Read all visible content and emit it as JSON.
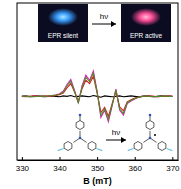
{
  "chart_data": {
    "type": "line",
    "xlabel": "B (mT)",
    "x": [
      330,
      331,
      332,
      333,
      334,
      335,
      336,
      337,
      338,
      339,
      340,
      341,
      342,
      343,
      344,
      345,
      346,
      347,
      348,
      349,
      350,
      351,
      352,
      353,
      354,
      355,
      356,
      357,
      358,
      359,
      360,
      361,
      362,
      363,
      364,
      365,
      366,
      367,
      368,
      369,
      370
    ],
    "series": [
      {
        "color": "#000000",
        "values": [
          0,
          0.01,
          -0.01,
          0,
          0.01,
          0,
          -0.01,
          0,
          0.01,
          0,
          -0.01,
          0.01,
          0,
          0.02,
          -0.01,
          0,
          0.01,
          0,
          -0.01,
          0.02,
          0,
          -0.02,
          0.01,
          0,
          -0.01,
          0,
          0.01,
          -0.01,
          0,
          0.01,
          0,
          -0.01,
          0,
          0.01,
          0,
          -0.01,
          0,
          0.01,
          0,
          0,
          0
        ]
      },
      {
        "color": "#e020c0",
        "values": [
          0,
          0.01,
          -0.01,
          0,
          0.01,
          0,
          0,
          0.01,
          0.02,
          0.03,
          0.06,
          0.12,
          0.28,
          0.4,
          0.14,
          -0.16,
          0.25,
          0.5,
          0.38,
          0.6,
          0.12,
          -0.5,
          -0.33,
          -0.6,
          -0.22,
          0.17,
          -0.33,
          -0.44,
          -0.17,
          -0.11,
          -0.06,
          -0.02,
          0,
          0.01,
          0,
          0,
          -0.01,
          0,
          0.01,
          0,
          0
        ]
      },
      {
        "color": "#d42020",
        "values": [
          0,
          -0.01,
          0,
          0.01,
          0,
          0,
          0.01,
          0,
          0.01,
          0.02,
          0.04,
          0.08,
          0.2,
          0.3,
          0.1,
          -0.12,
          0.18,
          0.38,
          0.3,
          0.47,
          0.08,
          -0.38,
          -0.26,
          -0.47,
          -0.17,
          0.12,
          -0.25,
          -0.34,
          -0.13,
          -0.08,
          -0.04,
          -0.02,
          0,
          0,
          0.01,
          0,
          -0.01,
          0,
          0,
          0.01,
          0
        ]
      },
      {
        "color": "#4e8a2a",
        "values": [
          0,
          0.01,
          0,
          -0.01,
          0,
          0.01,
          0,
          0.01,
          0.02,
          0.03,
          0.05,
          0.1,
          0.25,
          0.36,
          0.12,
          -0.15,
          0.22,
          0.45,
          0.35,
          0.55,
          0.1,
          -0.45,
          -0.3,
          -0.55,
          -0.2,
          0.15,
          -0.3,
          -0.4,
          -0.15,
          -0.1,
          -0.05,
          -0.02,
          0,
          0.01,
          0,
          -0.01,
          0,
          0,
          0.01,
          0,
          0
        ]
      }
    ],
    "xlim": [
      328.7,
      371.5
    ],
    "xticks": [
      330,
      340,
      350,
      360,
      370
    ],
    "ylim": [
      -1.5,
      2.2
    ],
    "tick_labels": "x",
    "annotations": [
      {
        "text": "EPR silent"
      },
      {
        "text": "EPR active"
      },
      {
        "text": "hν"
      },
      {
        "text": "hν"
      }
    ]
  }
}
